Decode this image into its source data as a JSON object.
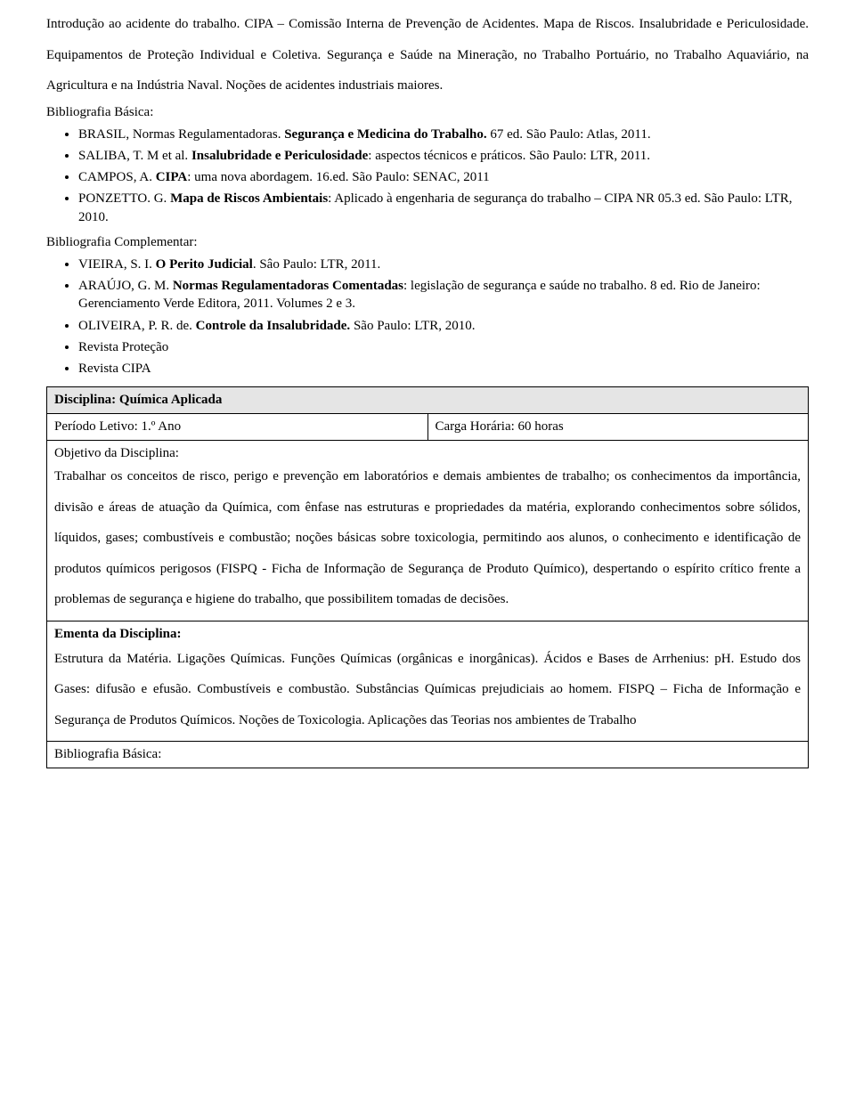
{
  "colors": {
    "text": "#000000",
    "background": "#ffffff",
    "border": "#000000",
    "shade": "#e5e5e5"
  },
  "typography": {
    "font_family": "Times New Roman",
    "body_size_pt": 12,
    "line_height_body": 2.3,
    "line_height_list": 1.35
  },
  "intro_paragraph": "Introdução ao acidente do trabalho. CIPA – Comissão Interna de Prevenção de Acidentes. Mapa de Riscos. Insalubridade e Periculosidade. Equipamentos de Proteção Individual e Coletiva. Segurança e Saúde na Mineração, no Trabalho Portuário, no Trabalho Aquaviário, na Agricultura e na Indústria Naval. Noções de acidentes industriais maiores.",
  "bib_basica_label": "Bibliografia Básica:",
  "bib_complementar_label": "Bibliografia Complementar:",
  "bib_basica": [
    {
      "pre": "BRASIL, Normas Regulamentadoras. ",
      "bold": "Segurança e Medicina do Trabalho.",
      "post": " 67 ed. São Paulo: Atlas, 2011."
    },
    {
      "pre": "SALIBA, T. M et al. ",
      "bold": "Insalubridade e Periculosidade",
      "post": ": aspectos técnicos e práticos. São Paulo: LTR, 2011."
    },
    {
      "pre": "CAMPOS, A. ",
      "bold": "CIPA",
      "post": ": uma nova abordagem. 16.ed. São Paulo: SENAC, 2011"
    },
    {
      "pre": "PONZETTO. G. ",
      "bold": "Mapa de Riscos Ambientais",
      "post": ": Aplicado à engenharia de segurança do trabalho – CIPA NR 05.3 ed. São Paulo: LTR, 2010."
    }
  ],
  "bib_complementar": [
    {
      "pre": "VIEIRA, S. I. ",
      "bold": "O Perito Judicial",
      "post": ". Sâo Paulo: LTR, 2011."
    },
    {
      "pre": "ARAÚJO, G. M. ",
      "bold": "Normas Regulamentadoras Comentadas",
      "post": ": legislação de segurança e saúde no trabalho. 8 ed. Rio de Janeiro: Gerenciamento Verde Editora, 2011. Volumes 2 e 3."
    },
    {
      "pre": "OLIVEIRA, P. R. de. ",
      "bold": "Controle da Insalubridade.",
      "post": " São Paulo: LTR, 2010."
    },
    {
      "pre": "Revista Proteção",
      "bold": "",
      "post": ""
    },
    {
      "pre": "Revista CIPA",
      "bold": "",
      "post": ""
    }
  ],
  "disciplina": {
    "titulo": "Disciplina: Química Aplicada",
    "periodo": "Período Letivo: 1.º Ano",
    "carga": "Carga Horária: 60 horas",
    "objetivo_label": "Objetivo da Disciplina:",
    "objetivo_body": "Trabalhar os conceitos de risco, perigo e prevenção em laboratórios e demais ambientes de trabalho; os conhecimentos da importância, divisão e áreas de atuação da Química, com ênfase nas estruturas e propriedades da matéria, explorando conhecimentos sobre sólidos, líquidos, gases; combustíveis e combustão; noções básicas sobre toxicologia, permitindo aos alunos, o conhecimento e identificação de produtos químicos perigosos (FISPQ - Ficha de Informação de Segurança de Produto Químico), despertando o espírito crítico frente a problemas de segurança e higiene do trabalho, que possibilitem tomadas de decisões.",
    "ementa_label": "Ementa da Disciplina:",
    "ementa_body": "Estrutura da Matéria. Ligações Químicas. Funções Químicas (orgânicas e inorgânicas). Ácidos e Bases de Arrhenius: pH. Estudo dos Gases: difusão e efusão. Combustíveis e combustão. Substâncias Químicas prejudiciais ao homem. FISPQ – Ficha de Informação e Segurança de Produtos Químicos. Noções de Toxicologia. Aplicações das Teorias nos ambientes de Trabalho",
    "bib_basica_label_2": "Bibliografia Básica:"
  }
}
